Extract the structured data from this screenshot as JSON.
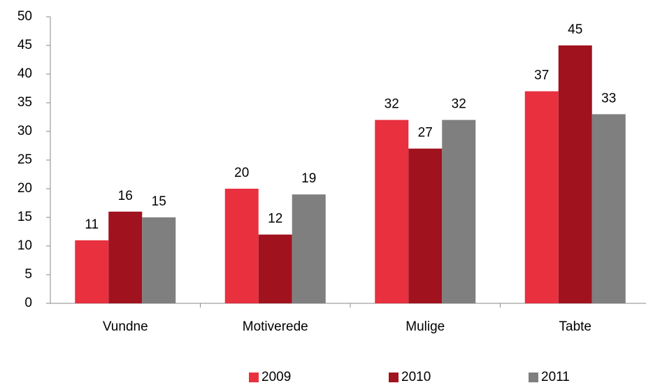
{
  "chart_data": {
    "type": "bar",
    "categories": [
      "Vundne",
      "Motiverede",
      "Mulige",
      "Tabte"
    ],
    "series": [
      {
        "name": "2009",
        "color": "#e8303e",
        "values": [
          11,
          20,
          32,
          37
        ]
      },
      {
        "name": "2010",
        "color": "#a0121e",
        "values": [
          16,
          12,
          27,
          45
        ]
      },
      {
        "name": "2011",
        "color": "#7f7f7f",
        "values": [
          15,
          19,
          32,
          33
        ]
      }
    ],
    "ylim": [
      0,
      50
    ],
    "yticks": [
      0,
      5,
      10,
      15,
      20,
      25,
      30,
      35,
      40,
      45,
      50
    ],
    "grid": false,
    "legend": "bottom"
  }
}
